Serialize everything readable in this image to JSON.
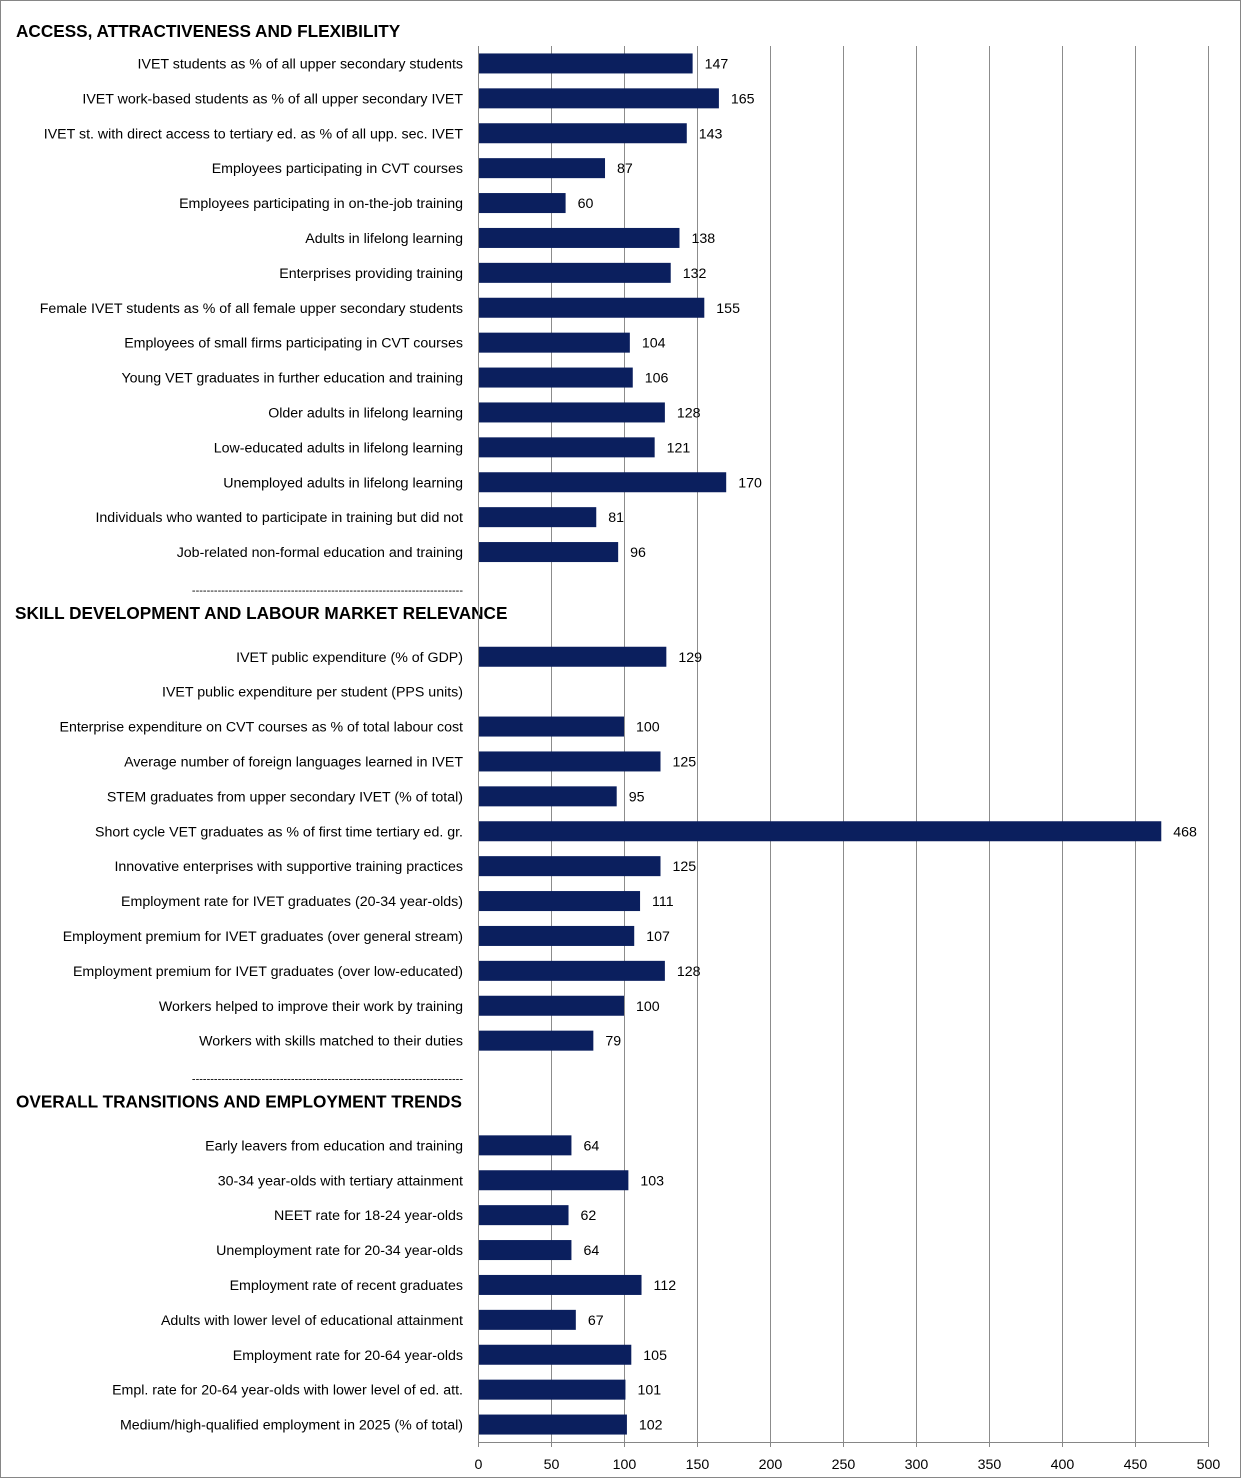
{
  "chart_data": {
    "type": "bar",
    "orientation": "horizontal",
    "xlim": [
      0,
      500
    ],
    "xticks": [
      0,
      50,
      100,
      150,
      200,
      250,
      300,
      350,
      400,
      450,
      500
    ],
    "grid": "vertical",
    "colors": {
      "bar": "#0b1f5e",
      "grid": "#8c8c8c",
      "axis": "#868686"
    },
    "separator_text": "--------------------------------------------------------------------------",
    "sections": [
      {
        "title": "ACCESS, ATTRACTIVENESS AND FLEXIBILITY",
        "items": [
          {
            "label": "IVET students as % of all upper secondary students",
            "value": 147
          },
          {
            "label": "IVET work-based students as % of all upper secondary IVET",
            "value": 165
          },
          {
            "label": "IVET st. with direct access to tertiary ed. as % of all upp. sec. IVET",
            "value": 143
          },
          {
            "label": "Employees participating in CVT courses",
            "value": 87
          },
          {
            "label": "Employees participating in on-the-job training",
            "value": 60
          },
          {
            "label": "Adults in lifelong learning",
            "value": 138
          },
          {
            "label": "Enterprises providing training",
            "value": 132
          },
          {
            "label": "Female IVET students as % of all female upper secondary students",
            "value": 155
          },
          {
            "label": "Employees of small firms participating in CVT courses",
            "value": 104
          },
          {
            "label": "Young VET graduates in further education and training",
            "value": 106
          },
          {
            "label": "Older adults in lifelong learning",
            "value": 128
          },
          {
            "label": "Low-educated adults in lifelong learning",
            "value": 121
          },
          {
            "label": "Unemployed adults in lifelong learning",
            "value": 170
          },
          {
            "label": "Individuals who wanted to participate in training but did not",
            "value": 81
          },
          {
            "label": "Job-related non-formal education and training",
            "value": 96
          }
        ]
      },
      {
        "title": "SKILL DEVELOPMENT AND LABOUR MARKET RELEVANCE",
        "items": [
          {
            "label": "IVET public expenditure (% of GDP)",
            "value": 129
          },
          {
            "label": "IVET public expenditure per student (PPS units)",
            "value": null
          },
          {
            "label": "Enterprise expenditure on CVT courses as % of total labour cost",
            "value": 100
          },
          {
            "label": "Average number of foreign languages learned in IVET",
            "value": 125
          },
          {
            "label": "STEM graduates from upper secondary IVET (% of total)",
            "value": 95
          },
          {
            "label": "Short cycle VET graduates as % of first time tertiary ed. gr.",
            "value": 468
          },
          {
            "label": "Innovative enterprises with supportive training practices",
            "value": 125
          },
          {
            "label": "Employment rate for IVET graduates (20-34 year-olds)",
            "value": 111
          },
          {
            "label": "Employment premium for IVET graduates (over general stream)",
            "value": 107
          },
          {
            "label": "Employment premium for IVET graduates (over low-educated)",
            "value": 128
          },
          {
            "label": "Workers helped to improve their work by training",
            "value": 100
          },
          {
            "label": "Workers with skills matched to their duties",
            "value": 79
          }
        ]
      },
      {
        "title": "OVERALL TRANSITIONS AND EMPLOYMENT TRENDS",
        "items": [
          {
            "label": "Early leavers from education and training",
            "value": 64
          },
          {
            "label": "30-34 year-olds with tertiary attainment",
            "value": 103
          },
          {
            "label": "NEET rate for 18-24 year-olds",
            "value": 62
          },
          {
            "label": "Unemployment rate for 20-34 year-olds",
            "value": 64
          },
          {
            "label": "Employment rate of recent graduates",
            "value": 112
          },
          {
            "label": "Adults with lower level of educational attainment",
            "value": 67
          },
          {
            "label": "Employment rate for 20-64 year-olds",
            "value": 105
          },
          {
            "label": "Empl. rate for 20-64 year-olds with lower level of ed. att.",
            "value": 101
          },
          {
            "label": "Medium/high-qualified employment in 2025 (% of total)",
            "value": 102
          }
        ]
      }
    ]
  }
}
